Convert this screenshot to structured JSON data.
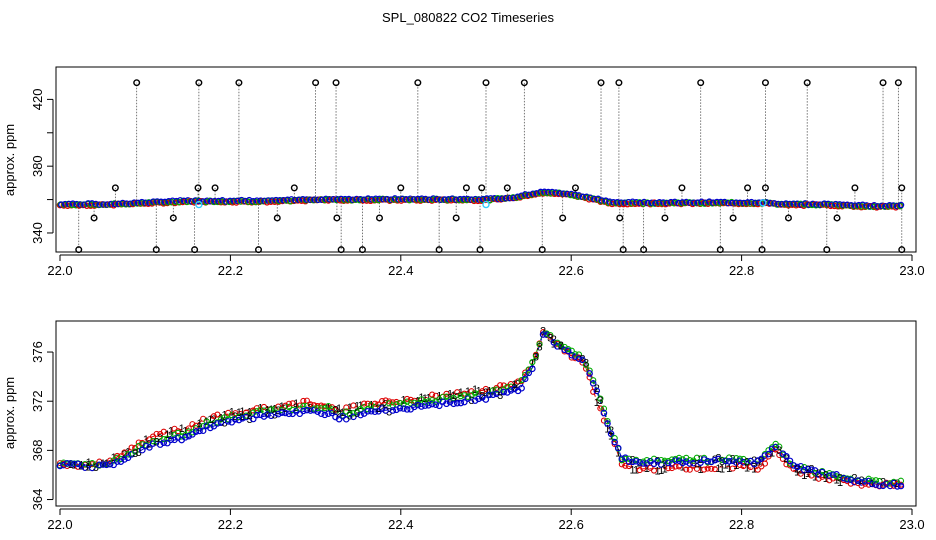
{
  "title": "SPL_080822  CO2 Timeseries",
  "colors": {
    "background": "#ffffff",
    "axis": "#000000",
    "outlier_points": "#000000",
    "cyan_points": "#33ccff",
    "series_1": "#dd0000",
    "series_2": "#00aa00",
    "series_3": "#0000cc"
  },
  "chart_data": [
    {
      "type": "scatter",
      "panel": "top",
      "ylabel": "approx. ppm",
      "xlim": [
        22.0,
        23.0
      ],
      "ylim": [
        331,
        437
      ],
      "xticks": [
        22.0,
        22.2,
        22.4,
        22.6,
        22.8,
        23.0
      ],
      "xtick_labels": [
        "22.0",
        "22.2",
        "22.4",
        "22.6",
        "22.8",
        "23.0"
      ],
      "yticks": [
        340,
        360,
        380,
        400,
        420
      ],
      "ytick_labels": [
        "340",
        "",
        "380",
        "",
        "420"
      ],
      "legend": "none",
      "grid": false,
      "outliers_high_x": [
        22.09,
        22.163,
        22.21,
        22.3,
        22.324,
        22.42,
        22.5,
        22.545,
        22.635,
        22.656,
        22.752,
        22.828,
        22.877,
        22.966,
        22.984
      ],
      "outliers_high_y": 430,
      "outliers_low_x": [
        22.022,
        22.113,
        22.158,
        22.233,
        22.33,
        22.355,
        22.445,
        22.493,
        22.566,
        22.661,
        22.685,
        22.775,
        22.824,
        22.9,
        22.988
      ],
      "outliers_low_y": 330,
      "outliers_mid_x": [
        22.04,
        22.065,
        22.133,
        22.162,
        22.182,
        22.255,
        22.275,
        22.325,
        22.375,
        22.4,
        22.465,
        22.477,
        22.495,
        22.525,
        22.59,
        22.605,
        22.657,
        22.71,
        22.73,
        22.79,
        22.807,
        22.828,
        22.855,
        22.912,
        22.933,
        22.988
      ],
      "outliers_mid_y": [
        349,
        367,
        349,
        367,
        367,
        349,
        367,
        349,
        349,
        367,
        349,
        367,
        367,
        367,
        349,
        367,
        349,
        349,
        367,
        349,
        367,
        367,
        349,
        349,
        367,
        367
      ],
      "cyan_x": [
        22.163,
        22.5,
        22.825
      ],
      "cyan_y": [
        357,
        357,
        358
      ],
      "series_x": [
        22.0,
        22.05,
        22.1,
        22.15,
        22.2,
        22.25,
        22.3,
        22.33,
        22.35,
        22.4,
        22.45,
        22.5,
        22.53,
        22.56,
        22.58,
        22.6,
        22.62,
        22.645,
        22.67,
        22.7,
        22.75,
        22.8,
        22.83,
        22.85,
        22.9,
        22.95,
        22.99
      ],
      "series_y": [
        357,
        357,
        358,
        359,
        359,
        359,
        360,
        360,
        360,
        360,
        360,
        360,
        361,
        364,
        364,
        363,
        361,
        358,
        358,
        358,
        358,
        358,
        358,
        357,
        357,
        356,
        356
      ]
    },
    {
      "type": "line",
      "panel": "bottom",
      "ylabel": "approx. ppm",
      "xlim": [
        22.0,
        23.0
      ],
      "ylim": [
        363.8,
        378.2
      ],
      "xticks": [
        22.0,
        22.2,
        22.4,
        22.6,
        22.8,
        23.0
      ],
      "xtick_labels": [
        "22.0",
        "22.2",
        "22.4",
        "22.6",
        "22.8",
        "23.0"
      ],
      "yticks": [
        364,
        368,
        372,
        376
      ],
      "ytick_labels": [
        "364",
        "368",
        "372",
        "376"
      ],
      "legend": "none",
      "grid": false,
      "x": [
        22.0,
        22.02,
        22.04,
        22.06,
        22.08,
        22.1,
        22.12,
        22.15,
        22.17,
        22.2,
        22.23,
        22.26,
        22.29,
        22.32,
        22.33,
        22.36,
        22.4,
        22.44,
        22.48,
        22.5,
        22.52,
        22.54,
        22.555,
        22.568,
        22.58,
        22.6,
        22.615,
        22.63,
        22.645,
        22.66,
        22.68,
        22.7,
        22.73,
        22.76,
        22.79,
        22.82,
        22.84,
        22.86,
        22.88,
        22.91,
        22.94,
        22.97,
        22.99
      ],
      "series": [
        {
          "name": "1",
          "values": [
            366.9,
            366.8,
            366.9,
            367.2,
            368.0,
            368.9,
            369.4,
            369.8,
            370.5,
            371.0,
            371.4,
            371.6,
            371.9,
            371.6,
            371.2,
            371.8,
            372.0,
            372.4,
            372.8,
            372.9,
            373.2,
            373.6,
            375.2,
            377.7,
            376.8,
            375.7,
            375.2,
            372.0,
            369.5,
            366.8,
            366.5,
            366.5,
            366.6,
            366.6,
            366.7,
            366.5,
            368.0,
            366.4,
            366.0,
            365.6,
            365.3,
            365.2,
            365.3
          ]
        },
        {
          "name": "2",
          "values": [
            366.9,
            366.8,
            366.8,
            367.0,
            367.7,
            368.5,
            369.0,
            369.4,
            370.2,
            370.7,
            371.1,
            371.3,
            371.6,
            371.4,
            370.9,
            371.5,
            371.8,
            372.1,
            372.5,
            372.6,
            372.9,
            373.4,
            375.1,
            377.8,
            376.9,
            376.0,
            375.5,
            373.0,
            370.0,
            367.2,
            367.1,
            367.2,
            367.3,
            367.2,
            367.3,
            367.1,
            368.5,
            366.8,
            366.4,
            366.0,
            365.6,
            365.4,
            365.4
          ]
        },
        {
          "name": "3",
          "values": [
            366.9,
            366.8,
            366.7,
            366.9,
            367.4,
            368.2,
            368.7,
            369.0,
            369.8,
            370.3,
            370.7,
            370.9,
            371.2,
            371.0,
            370.6,
            371.1,
            371.4,
            371.7,
            372.1,
            372.3,
            372.6,
            373.0,
            374.8,
            377.7,
            376.8,
            375.9,
            375.4,
            372.8,
            369.8,
            367.3,
            367.0,
            367.0,
            367.1,
            367.1,
            367.2,
            367.0,
            368.3,
            366.8,
            366.3,
            365.9,
            365.4,
            365.2,
            365.2
          ]
        }
      ]
    }
  ]
}
